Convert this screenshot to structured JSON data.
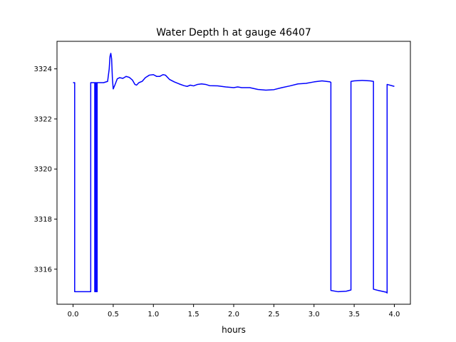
{
  "chart_data": {
    "type": "line",
    "title": "Water Depth h at gauge 46407",
    "xlabel": "hours",
    "ylabel": "",
    "xlim": [
      -0.2,
      4.2
    ],
    "ylim": [
      3314.6,
      3325.1
    ],
    "xticks": [
      0.0,
      0.5,
      1.0,
      1.5,
      2.0,
      2.5,
      3.0,
      3.5,
      4.0
    ],
    "xtick_labels": [
      "0.0",
      "0.5",
      "1.0",
      "1.5",
      "2.0",
      "2.5",
      "3.0",
      "3.5",
      "4.0"
    ],
    "yticks": [
      3316,
      3318,
      3320,
      3322,
      3324
    ],
    "ytick_labels": [
      "3316",
      "3318",
      "3320",
      "3322",
      "3324"
    ],
    "grid": false,
    "series": [
      {
        "color": "#0000ff",
        "x": [
          0.0,
          0.02,
          0.02,
          0.22,
          0.22,
          0.27,
          0.27,
          0.28,
          0.28,
          0.29,
          0.29,
          0.3,
          0.3,
          0.38,
          0.43,
          0.45,
          0.46,
          0.47,
          0.48,
          0.49,
          0.5,
          0.52,
          0.55,
          0.58,
          0.62,
          0.66,
          0.7,
          0.74,
          0.77,
          0.79,
          0.82,
          0.86,
          0.9,
          0.95,
          1.0,
          1.04,
          1.08,
          1.12,
          1.15,
          1.2,
          1.26,
          1.32,
          1.38,
          1.42,
          1.46,
          1.5,
          1.55,
          1.6,
          1.65,
          1.7,
          1.8,
          1.9,
          2.0,
          2.05,
          2.1,
          2.2,
          2.3,
          2.4,
          2.5,
          2.6,
          2.7,
          2.8,
          2.9,
          3.0,
          3.1,
          3.2,
          3.21,
          3.21,
          3.3,
          3.4,
          3.46,
          3.46,
          3.5,
          3.6,
          3.7,
          3.74,
          3.74,
          3.8,
          3.9,
          3.91,
          3.91,
          4.0
        ],
        "y": [
          3323.45,
          3323.45,
          3315.1,
          3315.1,
          3323.45,
          3323.45,
          3315.1,
          3315.1,
          3323.45,
          3323.45,
          3315.1,
          3315.1,
          3323.45,
          3323.45,
          3323.5,
          3324.0,
          3324.5,
          3324.62,
          3324.4,
          3323.6,
          3323.2,
          3323.35,
          3323.6,
          3323.65,
          3323.62,
          3323.7,
          3323.66,
          3323.55,
          3323.38,
          3323.35,
          3323.45,
          3323.5,
          3323.65,
          3323.75,
          3323.77,
          3323.7,
          3323.7,
          3323.77,
          3323.75,
          3323.58,
          3323.48,
          3323.4,
          3323.33,
          3323.3,
          3323.35,
          3323.32,
          3323.38,
          3323.4,
          3323.38,
          3323.33,
          3323.32,
          3323.28,
          3323.25,
          3323.28,
          3323.25,
          3323.25,
          3323.18,
          3323.15,
          3323.17,
          3323.25,
          3323.32,
          3323.4,
          3323.42,
          3323.48,
          3323.52,
          3323.48,
          3323.46,
          3315.15,
          3315.1,
          3315.12,
          3315.17,
          3323.5,
          3323.52,
          3323.54,
          3323.52,
          3323.5,
          3315.2,
          3315.15,
          3315.08,
          3315.05,
          3323.38,
          3323.3
        ]
      }
    ]
  }
}
